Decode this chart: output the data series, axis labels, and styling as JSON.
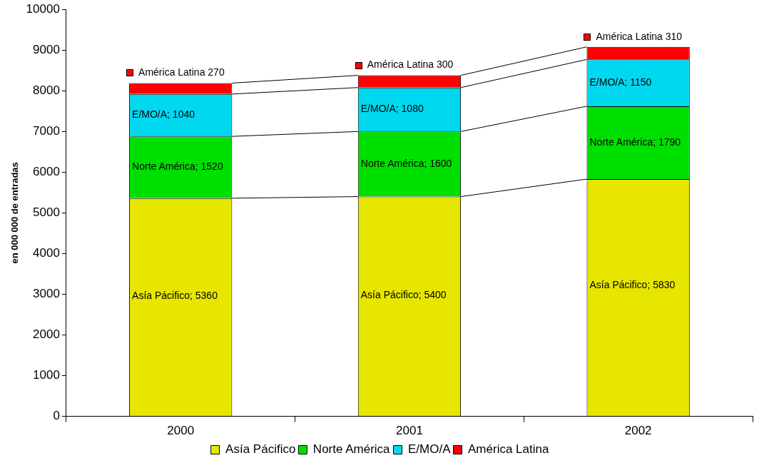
{
  "chart_data": {
    "type": "bar",
    "stacked": true,
    "ylabel": "en 000 000 de entradas",
    "categories": [
      "2000",
      "2001",
      "2002"
    ],
    "series": [
      {
        "name": "Asía Pácifico",
        "color": "#e6e600",
        "values": [
          5360,
          5400,
          5830
        ],
        "value_labels": [
          "Asía Pácifico; 5360",
          "Asía Pácifico; 5400",
          "Asía Pácifico; 5830"
        ]
      },
      {
        "name": "Norte América",
        "color": "#00e000",
        "values": [
          1520,
          1600,
          1790
        ],
        "value_labels": [
          "Norte América; 1520",
          "Norte América; 1600",
          "Norte América; 1790"
        ]
      },
      {
        "name": "E/MO/A",
        "color": "#00d8f0",
        "values": [
          1040,
          1080,
          1150
        ],
        "value_labels": [
          "E/MO/A; 1040",
          "E/MO/A; 1080",
          "E/MO/A; 1150"
        ]
      },
      {
        "name": "América Latina",
        "color": "#ff0000",
        "values": [
          270,
          300,
          310
        ],
        "value_labels": [
          "América Latina 270",
          "América Latina 300",
          "América Latina 310"
        ]
      }
    ],
    "ylim": [
      0,
      10000
    ],
    "yticks": [
      0,
      1000,
      2000,
      3000,
      4000,
      5000,
      6000,
      7000,
      8000,
      9000,
      10000
    ],
    "grid": false,
    "legend": "bottom"
  }
}
